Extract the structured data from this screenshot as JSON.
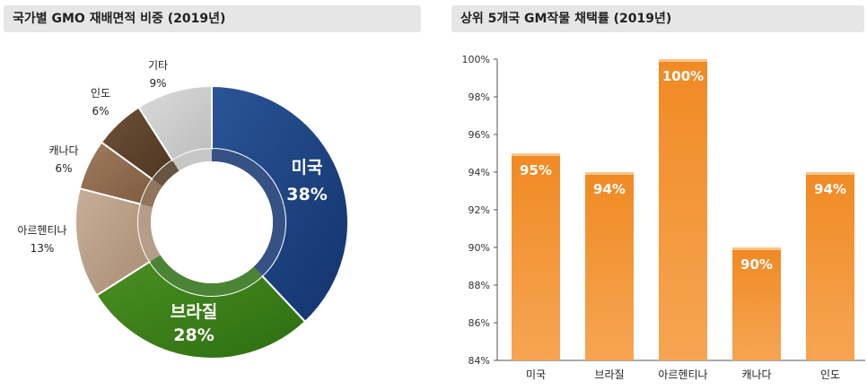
{
  "chart_data": [
    {
      "type": "pie",
      "title": "국가별 GMO 재배면적 비중 (2019년)",
      "slices": [
        {
          "name": "미국",
          "label": "38%",
          "value": 38,
          "color": "#2a5596",
          "color2": "#13336d"
        },
        {
          "name": "브라질",
          "label": "28%",
          "value": 28,
          "color": "#4a8e22",
          "color2": "#2c6e10"
        },
        {
          "name": "아르헨티나",
          "label": "13%",
          "value": 13,
          "color": "#c8ae98",
          "color2": "#a88c75"
        },
        {
          "name": "캐나다",
          "label": "6%",
          "value": 6,
          "color": "#a07c5e",
          "color2": "#7e5c40"
        },
        {
          "name": "인도",
          "label": "6%",
          "value": 6,
          "color": "#6e5238",
          "color2": "#4e3622"
        },
        {
          "name": "기타",
          "label": "9%",
          "value": 9,
          "color": "#dadada",
          "color2": "#bdbdbd"
        }
      ]
    },
    {
      "type": "bar",
      "title": "상위 5개국 GM작물 채택률 (2019년)",
      "categories": [
        "미국",
        "브라질",
        "아르헨티나",
        "캐나다",
        "인도"
      ],
      "values": [
        95,
        94,
        100,
        90,
        94
      ],
      "data_labels": [
        "95%",
        "94%",
        "100%",
        "90%",
        "94%"
      ],
      "ylim": [
        84,
        100
      ],
      "yticks": [
        "84%",
        "86%",
        "88%",
        "90%",
        "92%",
        "94%",
        "96%",
        "98%",
        "100%"
      ],
      "ytick_values": [
        84,
        86,
        88,
        90,
        92,
        94,
        96,
        98,
        100
      ],
      "bar_color": "#f08a24",
      "bar_color_light": "#f6a552",
      "grid": false
    }
  ]
}
